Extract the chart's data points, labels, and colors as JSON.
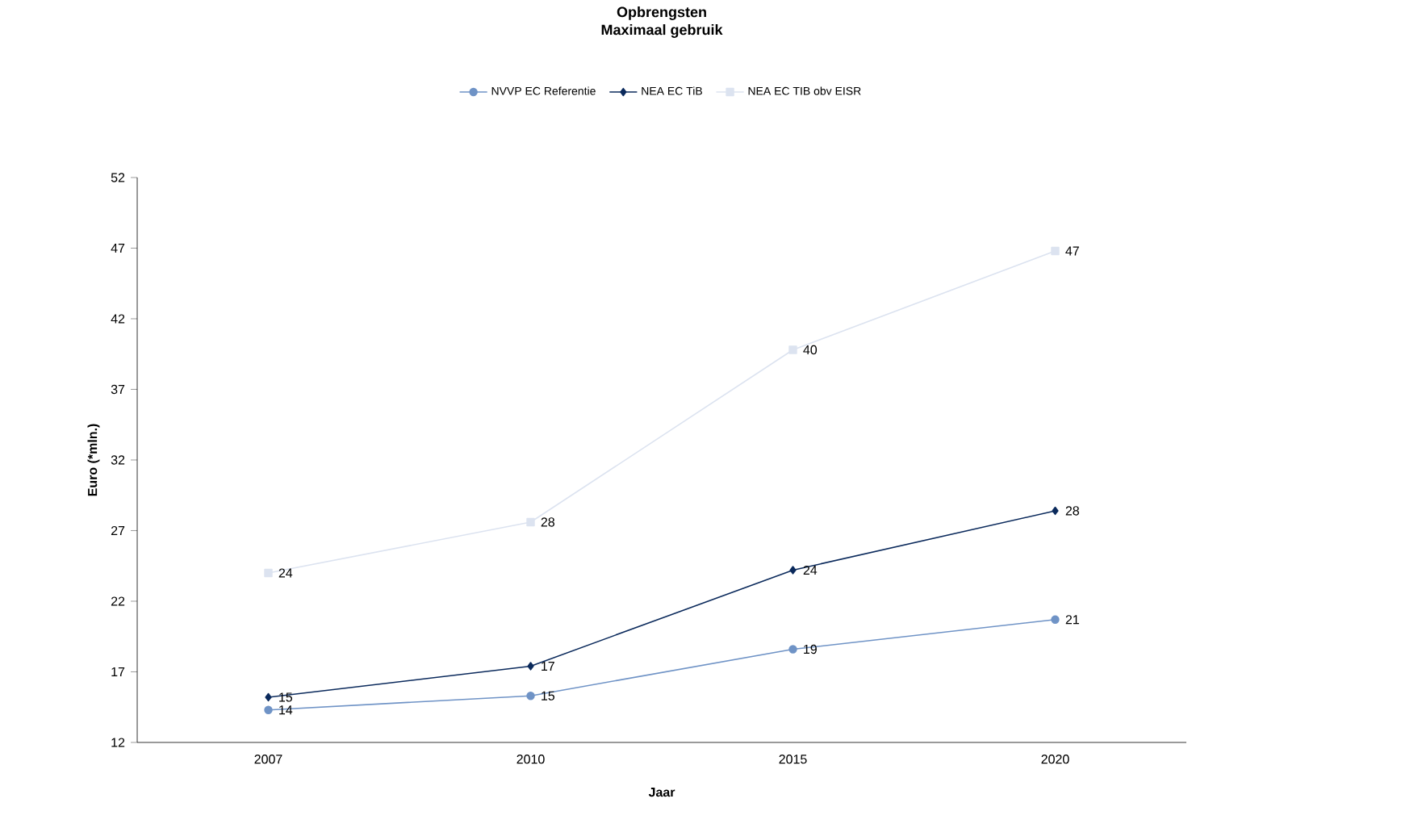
{
  "chart_data": {
    "type": "line",
    "title": "Opbrengsten",
    "subtitle": "Maximaal gebruik",
    "xlabel": "Jaar",
    "ylabel": "Euro (*mln.)",
    "categories": [
      "2007",
      "2010",
      "2015",
      "2020"
    ],
    "series": [
      {
        "name": "NVVP EC Referentie",
        "color": "#6f93c6",
        "marker": "circle",
        "values": [
          14.3,
          15.3,
          18.6,
          20.7
        ],
        "value_labels": [
          "14",
          "15",
          "19",
          "21"
        ]
      },
      {
        "name": "NEA EC TiB",
        "color": "#0b2a5c",
        "marker": "diamond",
        "values": [
          15.2,
          17.4,
          24.2,
          28.4
        ],
        "value_labels": [
          "15",
          "17",
          "24",
          "28"
        ]
      },
      {
        "name": "NEA EC TIB obv EISR",
        "color": "#dce3f0",
        "marker": "square",
        "values": [
          24.0,
          27.6,
          39.8,
          46.8
        ],
        "value_labels": [
          "24",
          "28",
          "40",
          "47"
        ]
      }
    ],
    "ylim": [
      12,
      52
    ],
    "yticks": [
      12,
      17,
      22,
      27,
      32,
      37,
      42,
      47,
      52
    ],
    "grid": false,
    "legend": "top",
    "line_style": "solid"
  }
}
